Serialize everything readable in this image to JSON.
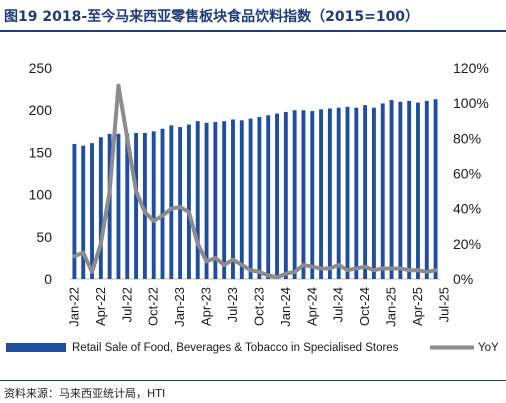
{
  "title": "图19 2018-至今马来西亚零售板块食品饮料指数（2015=100）",
  "source": "资料来源：马来西亚统计局，HTI",
  "colors": {
    "bar": "#1f4e9e",
    "line": "#8c8c8c",
    "title": "#1f3d7a"
  },
  "chart_data": {
    "type": "bar",
    "x_labels": [
      "Jan-22",
      "Apr-22",
      "Jul-22",
      "Oct-22",
      "Jan-23",
      "Apr-23",
      "Jul-23",
      "Oct-23",
      "Jan-24",
      "Apr-24",
      "Jul-24",
      "Oct-24",
      "Jan-25",
      "Apr-25",
      "Jul-25"
    ],
    "y_ticks": [
      "0",
      "50",
      "100",
      "150",
      "200",
      "250"
    ],
    "y2_ticks": [
      "0%",
      "20%",
      "40%",
      "60%",
      "80%",
      "100%",
      "120%"
    ],
    "ylim": [
      0,
      250
    ],
    "y2lim": [
      0,
      1.2
    ],
    "series": [
      {
        "name": "Retail Sale of Food, Beverages & Tobacco in Specialised Stores",
        "type": "bar",
        "axis": "left",
        "values": [
          160,
          158,
          161,
          168,
          172,
          172,
          172,
          173,
          173,
          175,
          178,
          182,
          180,
          183,
          187,
          185,
          186,
          187,
          189,
          188,
          190,
          192,
          194,
          196,
          198,
          200,
          200,
          199,
          201,
          202,
          203,
          204,
          203,
          206,
          203,
          208,
          212,
          210,
          211,
          209,
          211,
          213
        ]
      },
      {
        "name": "YoY",
        "type": "line",
        "axis": "right",
        "values": [
          0.13,
          0.15,
          0.04,
          0.2,
          0.5,
          1.1,
          0.8,
          0.5,
          0.38,
          0.33,
          0.36,
          0.4,
          0.41,
          0.38,
          0.2,
          0.1,
          0.12,
          0.08,
          0.11,
          0.08,
          0.05,
          0.04,
          0.02,
          0.01,
          0.03,
          0.04,
          0.08,
          0.07,
          0.06,
          0.06,
          0.08,
          0.05,
          0.06,
          0.07,
          0.05,
          0.06,
          0.06,
          0.06,
          0.05,
          0.05,
          0.04,
          0.05
        ]
      }
    ],
    "legend_position": "bottom",
    "grid": false
  }
}
